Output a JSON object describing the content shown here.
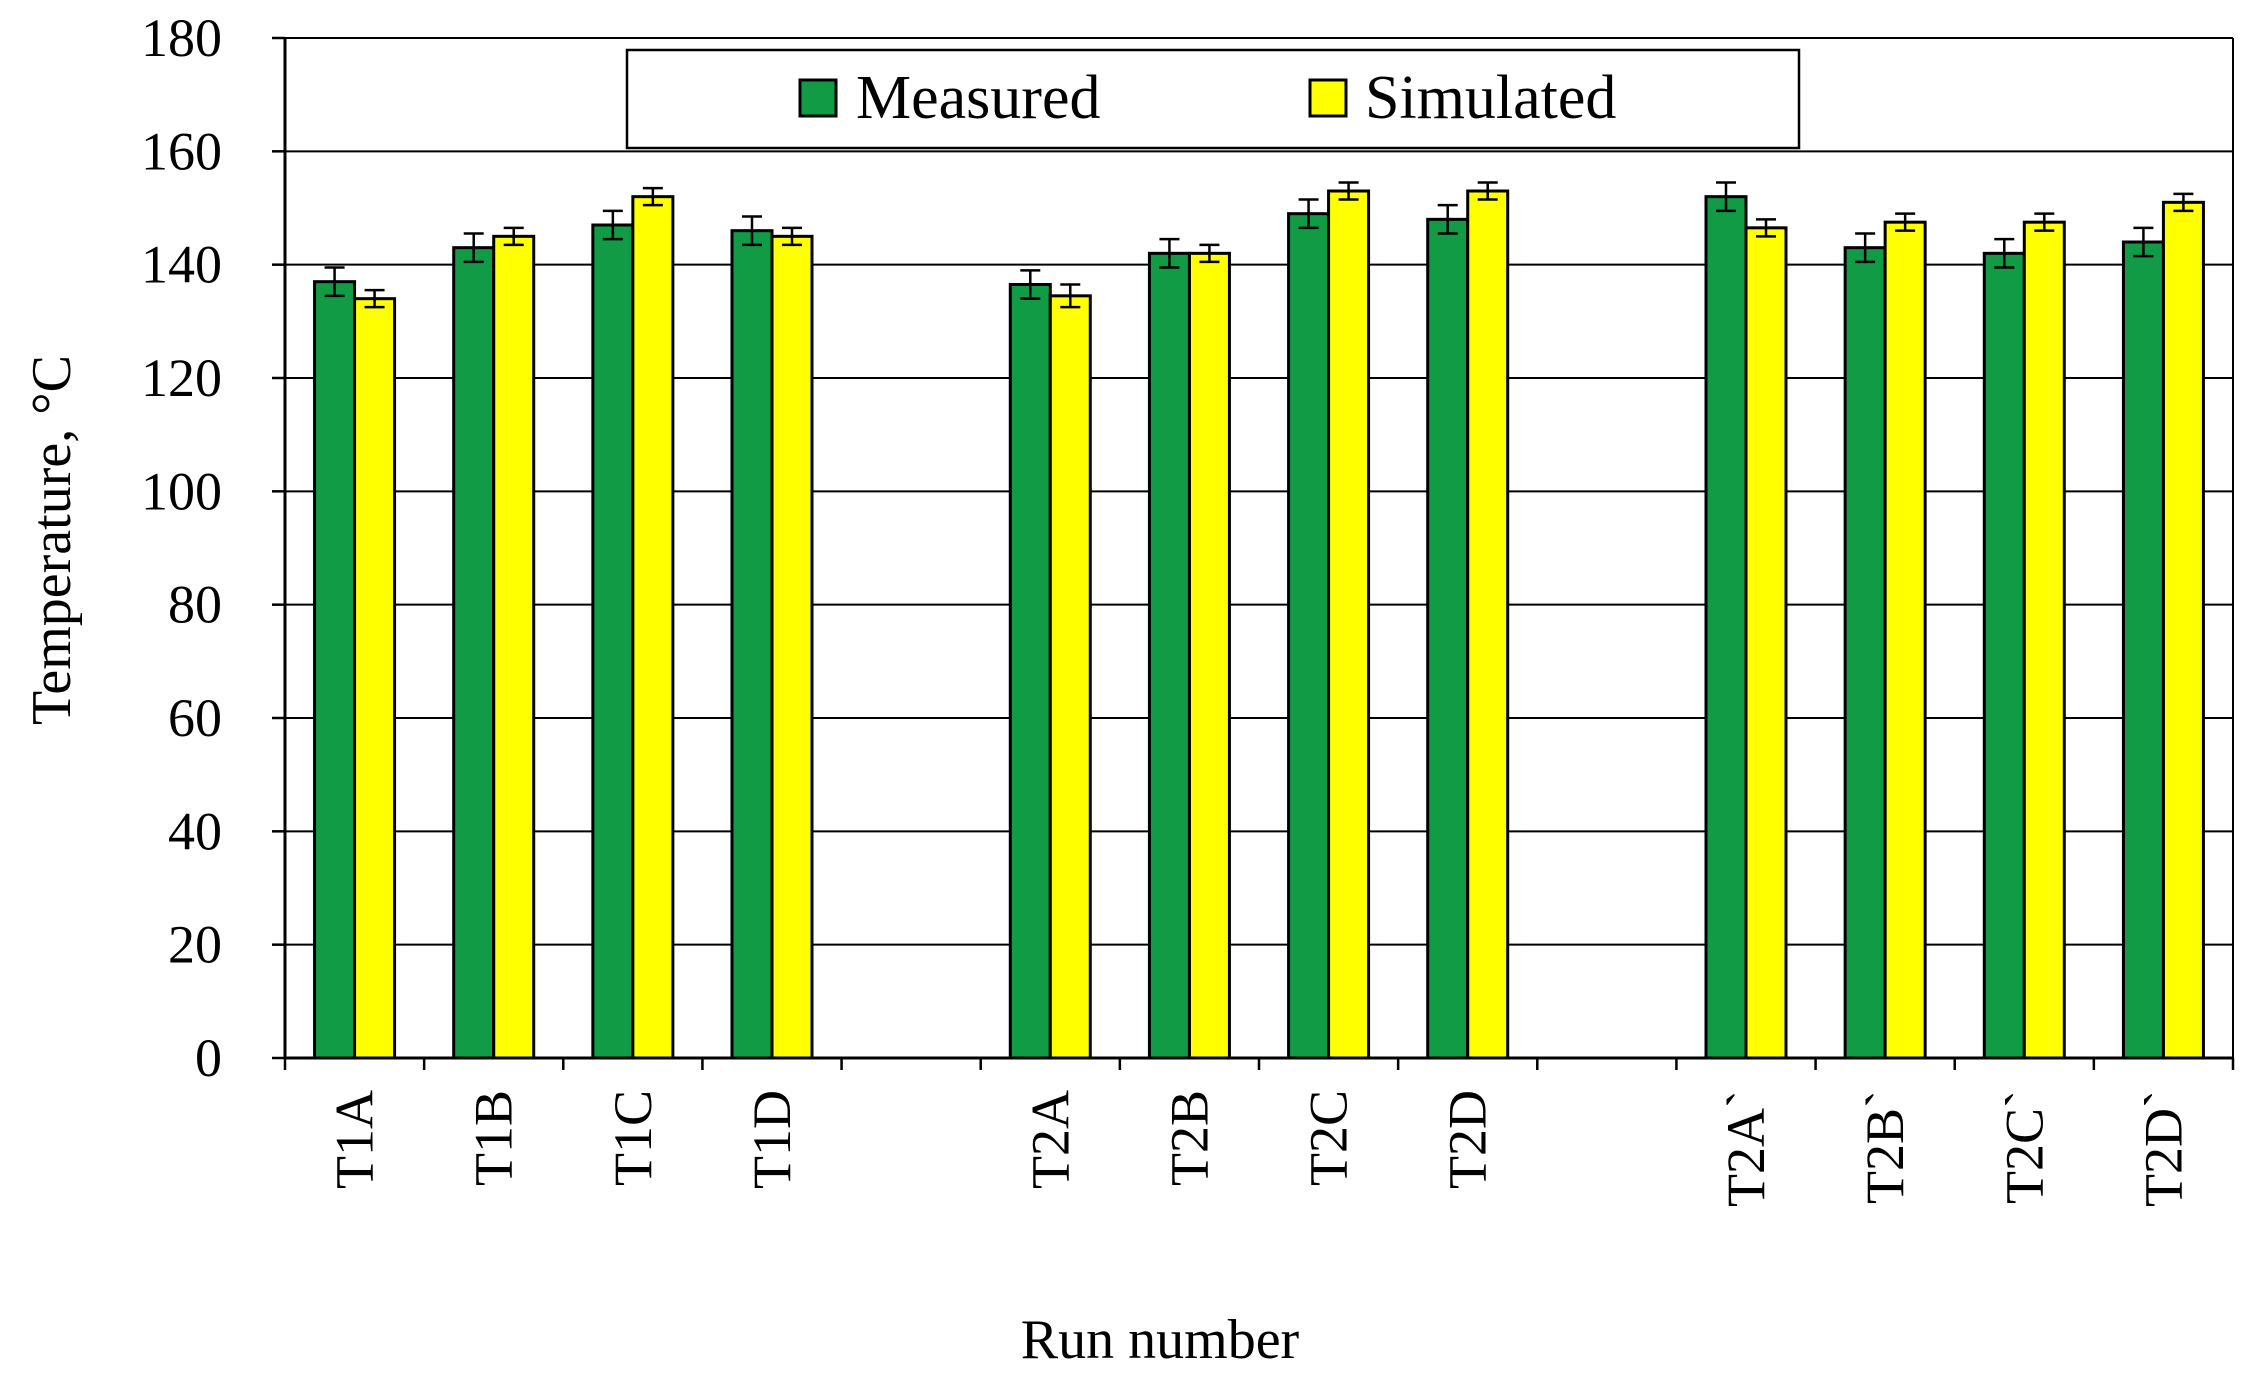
{
  "chart_data": {
    "type": "bar",
    "title": "",
    "xlabel": "Run number",
    "ylabel": "Temperature, °C",
    "ylim": [
      0,
      180
    ],
    "yticks": [
      0,
      20,
      40,
      60,
      80,
      100,
      120,
      140,
      160,
      180
    ],
    "grid": true,
    "legend_position": "top",
    "categories": [
      "T1A",
      "T1B",
      "T1C",
      "T1D",
      "",
      "T2A",
      "T2B",
      "T2C",
      "T2D",
      "",
      "T2A`",
      "T2B`",
      "T2C`",
      "T2D`"
    ],
    "series": [
      {
        "name": "Measured",
        "color": "#119b44",
        "values": [
          137,
          143,
          147,
          146,
          null,
          136.5,
          142,
          149,
          148,
          null,
          152,
          143,
          142,
          144
        ],
        "errors": [
          2.5,
          2.5,
          2.5,
          2.5,
          null,
          2.5,
          2.5,
          2.5,
          2.5,
          null,
          2.5,
          2.5,
          2.5,
          2.5
        ]
      },
      {
        "name": "Simulated",
        "color": "#ffff00",
        "values": [
          134,
          145,
          152,
          145,
          null,
          134.5,
          142,
          153,
          153,
          null,
          146.5,
          147.5,
          147.5,
          151
        ],
        "errors": [
          1.5,
          1.5,
          1.5,
          1.5,
          null,
          2,
          1.5,
          1.5,
          1.5,
          null,
          1.5,
          1.5,
          1.5,
          1.5
        ]
      }
    ]
  }
}
